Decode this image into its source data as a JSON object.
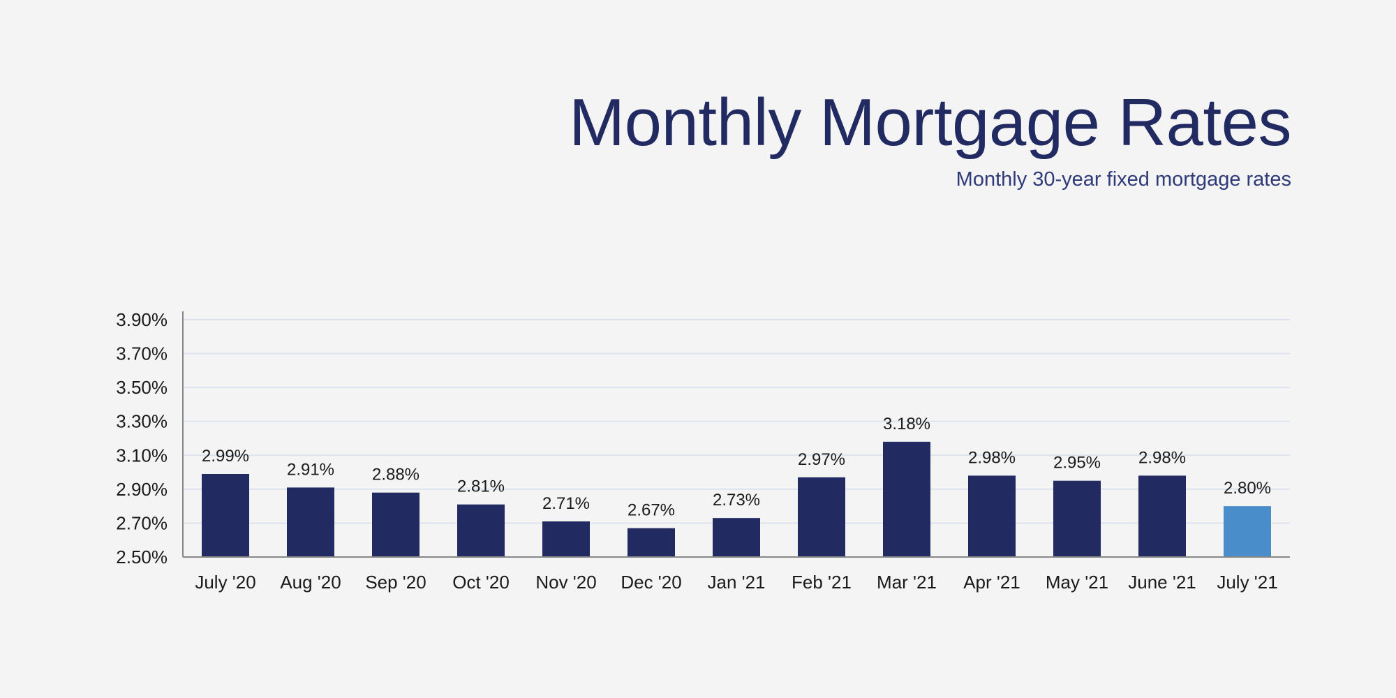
{
  "chart_data": {
    "type": "bar",
    "title": "Monthly Mortgage Rates",
    "subtitle": "Monthly 30-year fixed mortgage rates",
    "xlabel": "",
    "ylabel": "",
    "categories": [
      "July '20",
      "Aug '20",
      "Sep '20",
      "Oct '20",
      "Nov '20",
      "Dec '20",
      "Jan '21",
      "Feb '21",
      "Mar '21",
      "Apr '21",
      "May '21",
      "June '21",
      "July '21"
    ],
    "values": [
      2.99,
      2.91,
      2.88,
      2.81,
      2.71,
      2.67,
      2.73,
      2.97,
      3.18,
      2.98,
      2.95,
      2.98,
      2.8
    ],
    "data_labels": [
      "2.99%",
      "2.91%",
      "2.88%",
      "2.81%",
      "2.71%",
      "2.67%",
      "2.73%",
      "2.97%",
      "3.18%",
      "2.98%",
      "2.95%",
      "2.98%",
      "2.80%"
    ],
    "ylim": [
      2.5,
      3.9
    ],
    "yticks": [
      2.5,
      2.7,
      2.9,
      3.1,
      3.3,
      3.5,
      3.7,
      3.9
    ],
    "ytick_labels": [
      "2.50%",
      "2.70%",
      "2.90%",
      "3.10%",
      "3.30%",
      "3.50%",
      "3.70%",
      "3.90%"
    ],
    "grid": true,
    "colors": {
      "bar": "#222a62",
      "highlight": "#4a8dcb",
      "grid": "#dde3ee",
      "title": "#222a62"
    },
    "highlight_index": 12
  }
}
